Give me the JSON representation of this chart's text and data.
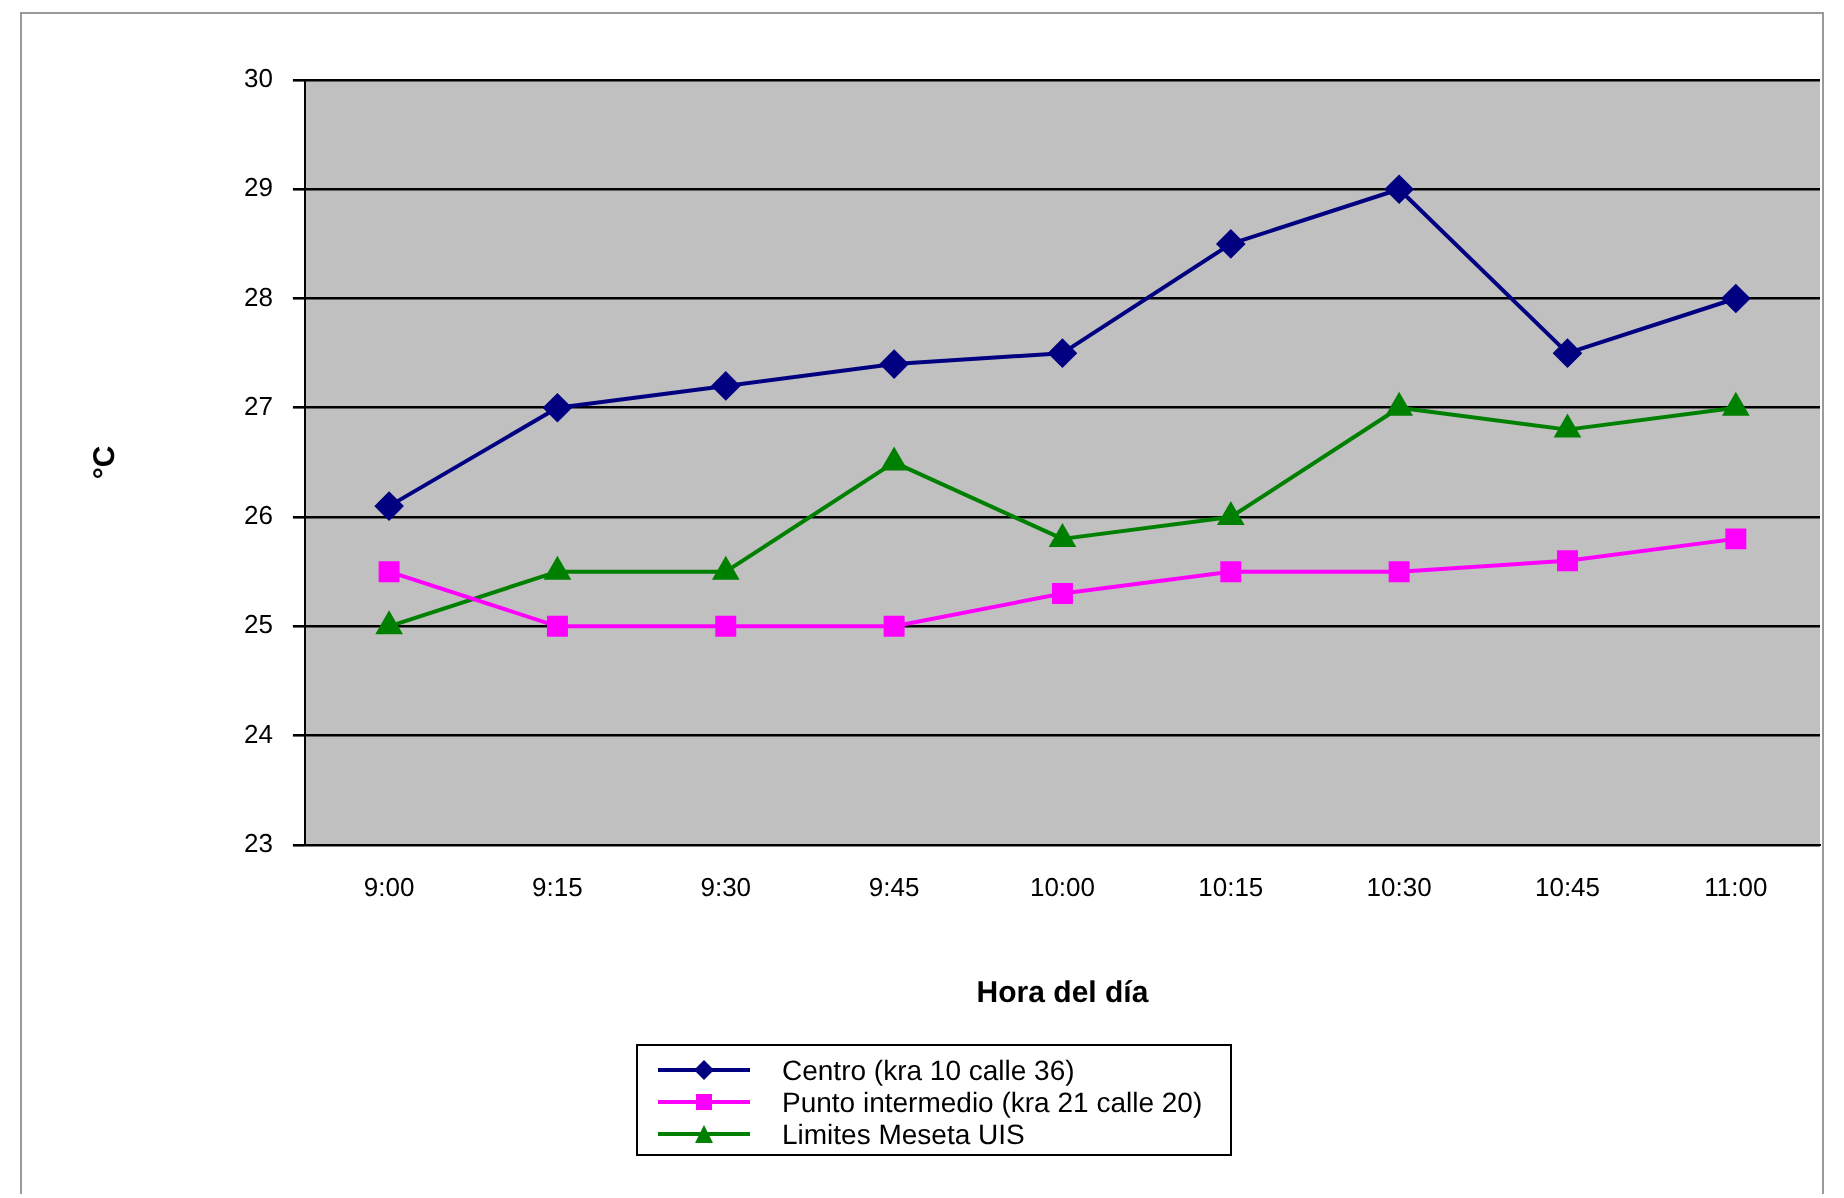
{
  "chart_data": {
    "type": "line",
    "xlabel": "Hora del día",
    "ylabel": "°C",
    "categories": [
      "9:00",
      "9:15",
      "9:30",
      "9:45",
      "10:00",
      "10:15",
      "10:30",
      "10:45",
      "11:00"
    ],
    "ylim": [
      23,
      30
    ],
    "yticks": [
      23,
      24,
      25,
      26,
      27,
      28,
      29,
      30
    ],
    "grid": "y",
    "legend": "bottom",
    "series": [
      {
        "name": "Centro (kra 10 calle 36)",
        "color": "#000080",
        "marker": "diamond",
        "values": [
          26.1,
          27,
          27.2,
          27.4,
          27.5,
          28.5,
          29,
          27.5,
          28
        ]
      },
      {
        "name": "Punto intermedio (kra 21 calle 20)",
        "color": "#ff00ff",
        "marker": "square",
        "values": [
          25.5,
          25,
          25,
          25,
          25.3,
          25.5,
          25.5,
          25.6,
          25.8
        ]
      },
      {
        "name": "Limites Meseta UIS",
        "color": "#008000",
        "marker": "triangle",
        "values": [
          25,
          25.5,
          25.5,
          26.5,
          25.8,
          26,
          27,
          26.8,
          27
        ]
      }
    ]
  }
}
